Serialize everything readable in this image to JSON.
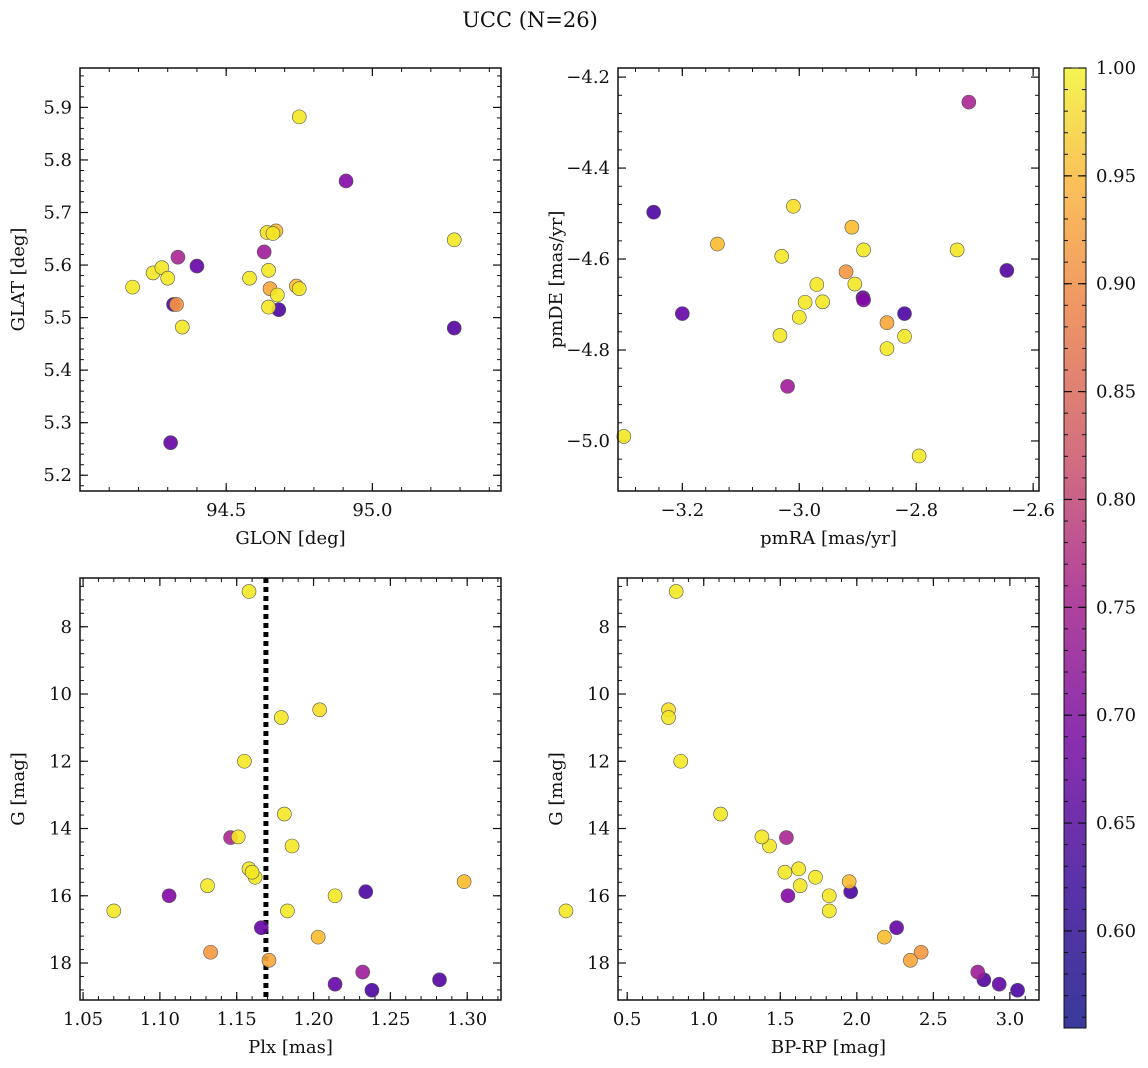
{
  "chart_data": {
    "suptitle": "UCC (N=26)",
    "colorbar": {
      "range": [
        0.555,
        1.0
      ],
      "ticks": [
        "0.60",
        "0.65",
        "0.70",
        "0.75",
        "0.80",
        "0.85",
        "0.90",
        "0.95",
        "1.00"
      ],
      "colormap": "plasma"
    },
    "members": [
      {
        "glon": 94.18,
        "glat": 5.558,
        "pmra": -3.3,
        "pmde": -4.99,
        "plx": 1.07,
        "g": 16.45,
        "bprp": 0.1,
        "prob": 0.98
      },
      {
        "glon": 94.25,
        "glat": 5.585,
        "pmra": -3.03,
        "pmde": -4.594,
        "plx": 1.158,
        "g": 15.2,
        "bprp": 1.62,
        "prob": 0.98
      },
      {
        "glon": 94.28,
        "glat": 5.595,
        "pmra": -3.0,
        "pmde": -4.728,
        "plx": 1.162,
        "g": 15.45,
        "bprp": 1.73,
        "prob": 0.98
      },
      {
        "glon": 94.3,
        "glat": 5.575,
        "pmra": -2.96,
        "pmde": -4.694,
        "plx": 1.16,
        "g": 15.3,
        "bprp": 1.53,
        "prob": 0.98
      },
      {
        "glon": 94.31,
        "glat": 5.262,
        "pmra": -3.2,
        "pmde": -4.72,
        "plx": 1.214,
        "g": 18.63,
        "bprp": 2.93,
        "prob": 0.6
      },
      {
        "glon": 94.32,
        "glat": 5.525,
        "pmra": -3.249,
        "pmde": -4.497,
        "plx": 1.238,
        "g": 18.81,
        "bprp": 3.05,
        "prob": 0.57
      },
      {
        "glon": 94.33,
        "glat": 5.525,
        "pmra": -2.92,
        "pmde": -4.628,
        "plx": 1.133,
        "g": 17.68,
        "bprp": 2.42,
        "prob": 0.88
      },
      {
        "glon": 94.335,
        "glat": 5.615,
        "pmra": -2.71,
        "pmde": -4.255,
        "plx": 1.146,
        "g": 14.27,
        "bprp": 1.54,
        "prob": 0.7
      },
      {
        "glon": 94.35,
        "glat": 5.482,
        "pmra": -2.99,
        "pmde": -4.695,
        "plx": 1.155,
        "g": 12.0,
        "bprp": 0.85,
        "prob": 0.98
      },
      {
        "glon": 94.4,
        "glat": 5.598,
        "pmra": -2.891,
        "pmde": -4.685,
        "plx": 1.166,
        "g": 16.95,
        "bprp": 2.26,
        "prob": 0.6
      },
      {
        "glon": 94.58,
        "glat": 5.575,
        "pmra": -2.97,
        "pmde": -4.656,
        "plx": 1.186,
        "g": 14.52,
        "bprp": 1.43,
        "prob": 0.98
      },
      {
        "glon": 94.63,
        "glat": 5.625,
        "pmra": -3.02,
        "pmde": -4.88,
        "plx": 1.232,
        "g": 18.27,
        "bprp": 2.79,
        "prob": 0.68
      },
      {
        "glon": 94.64,
        "glat": 5.662,
        "pmra": -3.01,
        "pmde": -4.484,
        "plx": 1.204,
        "g": 10.47,
        "bprp": 0.77,
        "prob": 0.97
      },
      {
        "glon": 94.645,
        "glat": 5.59,
        "pmra": -2.905,
        "pmde": -4.655,
        "plx": 1.131,
        "g": 15.7,
        "bprp": 1.63,
        "prob": 0.98
      },
      {
        "glon": 94.645,
        "glat": 5.52,
        "pmra": -2.89,
        "pmde": -4.58,
        "plx": 1.214,
        "g": 16.0,
        "bprp": 1.82,
        "prob": 0.98
      },
      {
        "glon": 94.65,
        "glat": 5.555,
        "pmra": -2.85,
        "pmde": -4.74,
        "plx": 1.171,
        "g": 17.92,
        "bprp": 2.35,
        "prob": 0.9
      },
      {
        "glon": 94.66,
        "glat": 5.66,
        "pmra": -3.033,
        "pmde": -4.768,
        "plx": 1.179,
        "g": 10.7,
        "bprp": 0.77,
        "prob": 0.98
      },
      {
        "glon": 94.67,
        "glat": 5.665,
        "pmra": -3.14,
        "pmde": -4.567,
        "plx": 1.298,
        "g": 15.58,
        "bprp": 1.95,
        "prob": 0.93
      },
      {
        "glon": 94.675,
        "glat": 5.543,
        "pmra": -2.73,
        "pmde": -4.58,
        "plx": 1.181,
        "g": 13.57,
        "bprp": 1.11,
        "prob": 0.98
      },
      {
        "glon": 94.68,
        "glat": 5.515,
        "pmra": -2.82,
        "pmde": -4.72,
        "plx": 1.234,
        "g": 15.88,
        "bprp": 1.96,
        "prob": 0.57
      },
      {
        "glon": 94.74,
        "glat": 5.56,
        "pmra": -2.91,
        "pmde": -4.53,
        "plx": 1.203,
        "g": 17.23,
        "bprp": 2.18,
        "prob": 0.93
      },
      {
        "glon": 94.75,
        "glat": 5.555,
        "pmra": -2.82,
        "pmde": -4.77,
        "plx": 1.151,
        "g": 14.25,
        "bprp": 1.38,
        "prob": 0.98
      },
      {
        "glon": 94.75,
        "glat": 5.882,
        "pmra": -2.85,
        "pmde": -4.797,
        "plx": 1.183,
        "g": 16.45,
        "bprp": 1.82,
        "prob": 0.98
      },
      {
        "glon": 94.91,
        "glat": 5.76,
        "pmra": -2.89,
        "pmde": -4.69,
        "plx": 1.106,
        "g": 16.0,
        "bprp": 1.55,
        "prob": 0.64
      },
      {
        "glon": 95.28,
        "glat": 5.648,
        "pmra": -2.795,
        "pmde": -5.033,
        "plx": 1.158,
        "g": 6.95,
        "bprp": 0.82,
        "prob": 0.98
      },
      {
        "glon": 95.28,
        "glat": 5.48,
        "pmra": -2.645,
        "pmde": -4.625,
        "plx": 1.282,
        "g": 18.5,
        "bprp": 2.83,
        "prob": 0.58
      }
    ],
    "panels": [
      {
        "type": "scatter",
        "xlabel": "GLON [deg]",
        "ylabel": "GLAT [deg]",
        "xkey": "glon",
        "ykey": "glat",
        "xlim": [
          94.0,
          95.44
        ],
        "ylim": [
          5.17,
          5.975
        ],
        "yinvert": false,
        "xticks": [
          94.5,
          95.0
        ],
        "xticklabels": [
          "94.5",
          "95.0"
        ],
        "xminor": 0.1,
        "yticks": [
          5.2,
          5.3,
          5.4,
          5.5,
          5.6,
          5.7,
          5.8,
          5.9
        ],
        "yticklabels": [
          "5.2",
          "5.3",
          "5.4",
          "5.5",
          "5.6",
          "5.7",
          "5.8",
          "5.9"
        ],
        "yminor": 0.02
      },
      {
        "type": "scatter",
        "xlabel": "pmRA [mas/yr]",
        "ylabel": "pmDE [mas/yr]",
        "xkey": "pmra",
        "ykey": "pmde",
        "xlim": [
          -3.31,
          -2.59
        ],
        "ylim": [
          -5.11,
          -4.18
        ],
        "yinvert": false,
        "xticks": [
          -3.2,
          -3.0,
          -2.8,
          -2.6
        ],
        "xticklabels": [
          "−3.2",
          "−3.0",
          "−2.8",
          "−2.6"
        ],
        "xminor": 0.04,
        "yticks": [
          -5.0,
          -4.8,
          -4.6,
          -4.4,
          -4.2
        ],
        "yticklabels": [
          "−5.0",
          "−4.8",
          "−4.6",
          "−4.4",
          "−4.2"
        ],
        "yminor": 0.04
      },
      {
        "type": "scatter",
        "xlabel": "Plx [mas]",
        "ylabel": "G [mag]",
        "xkey": "plx",
        "ykey": "g",
        "xlim": [
          1.048,
          1.322
        ],
        "ylim": [
          6.55,
          19.1
        ],
        "yinvert": true,
        "xticks": [
          1.05,
          1.1,
          1.15,
          1.2,
          1.25,
          1.3
        ],
        "xticklabels": [
          "1.05",
          "1.10",
          "1.15",
          "1.20",
          "1.25",
          "1.30"
        ],
        "xminor": 0.01,
        "yticks": [
          8,
          10,
          12,
          14,
          16,
          18
        ],
        "yticklabels": [
          "8",
          "10",
          "12",
          "14",
          "16",
          "18"
        ],
        "yminor": 0.4,
        "vline": 1.169
      },
      {
        "type": "scatter",
        "xlabel": "BP-RP [mag]",
        "ylabel": "G [mag]",
        "xkey": "bprp",
        "ykey": "g",
        "xlim": [
          0.44,
          3.19
        ],
        "ylim": [
          6.55,
          19.1
        ],
        "yinvert": true,
        "xticks": [
          0.5,
          1.0,
          1.5,
          2.0,
          2.5,
          3.0
        ],
        "xticklabels": [
          "0.5",
          "1.0",
          "1.5",
          "2.0",
          "2.5",
          "3.0"
        ],
        "xminor": 0.1,
        "yticks": [
          8,
          10,
          12,
          14,
          16,
          18
        ],
        "yticklabels": [
          "8",
          "10",
          "12",
          "14",
          "16",
          "18"
        ],
        "yminor": 0.4
      }
    ]
  }
}
